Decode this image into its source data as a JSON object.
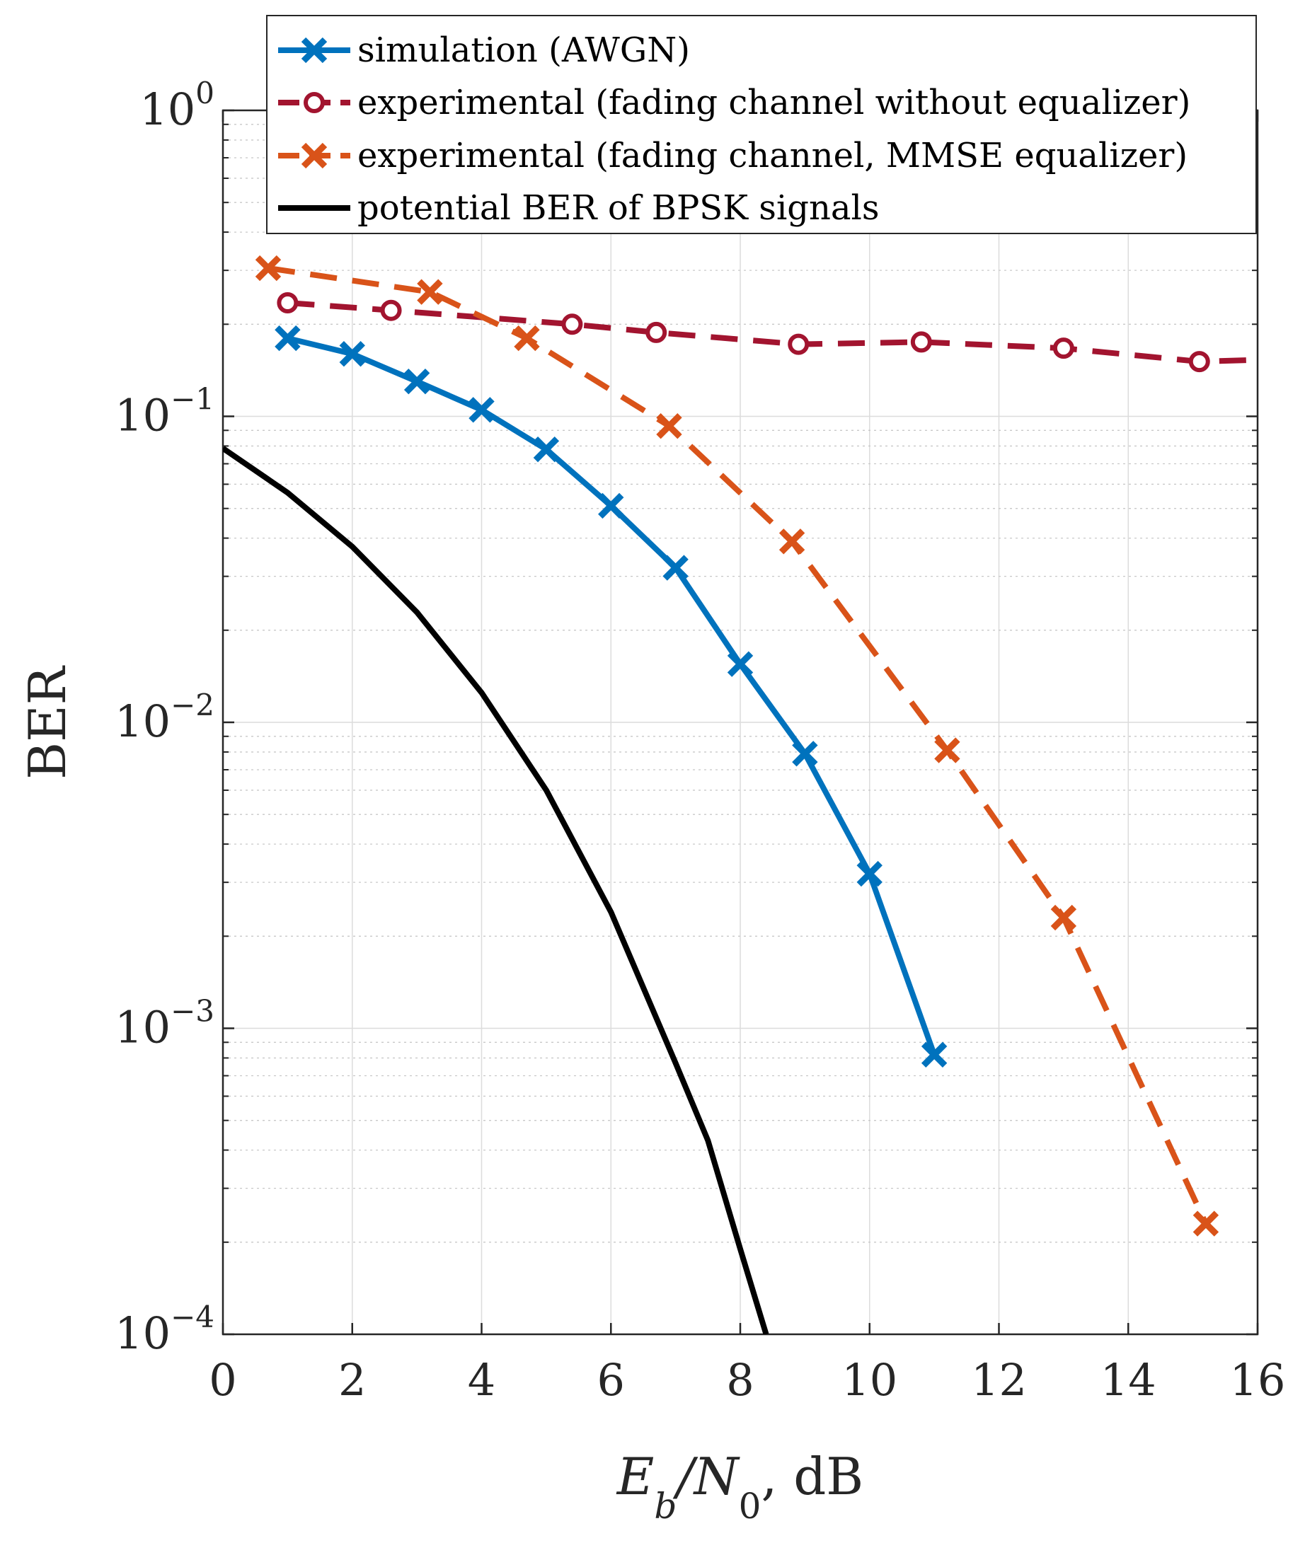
{
  "chart_data": {
    "type": "line",
    "xlabel": {
      "main": "E",
      "sub1": "b",
      "slash": "/N",
      "sub2": "0",
      "unit": ", dB"
    },
    "ylabel": "BER",
    "xlim": [
      0,
      16
    ],
    "ylim_log10": [
      -4,
      0
    ],
    "yscale": "log",
    "grid": true,
    "legend_position": "top-right",
    "x_ticks": [
      {
        "value": 0,
        "label": "0"
      },
      {
        "value": 2,
        "label": "2"
      },
      {
        "value": 4,
        "label": "4"
      },
      {
        "value": 6,
        "label": "6"
      },
      {
        "value": 8,
        "label": "8"
      },
      {
        "value": 10,
        "label": "10"
      },
      {
        "value": 12,
        "label": "12"
      },
      {
        "value": 14,
        "label": "14"
      },
      {
        "value": 16,
        "label": "16"
      }
    ],
    "y_ticks": [
      {
        "exp": 0,
        "base": "10",
        "power": "0"
      },
      {
        "exp": -1,
        "base": "10",
        "power": "−1"
      },
      {
        "exp": -2,
        "base": "10",
        "power": "−2"
      },
      {
        "exp": -3,
        "base": "10",
        "power": "−3"
      },
      {
        "exp": -4,
        "base": "10",
        "power": "−4"
      }
    ],
    "series": [
      {
        "name": "simulation (AWGN)",
        "color": "#0072BD",
        "dash": "solid",
        "marker": "x",
        "x": [
          1,
          2,
          3,
          4,
          5,
          6,
          7,
          8,
          9,
          10,
          11
        ],
        "y": [
          0.18,
          0.16,
          0.13,
          0.105,
          0.078,
          0.051,
          0.032,
          0.0155,
          0.0079,
          0.0032,
          0.00082
        ]
      },
      {
        "name": "experimental (fading channel without equalizer)",
        "color": "#A2142F",
        "dash": "dashed",
        "marker": "o",
        "x": [
          1.0,
          2.6,
          5.4,
          6.7,
          8.9,
          10.8,
          13.0,
          15.1,
          16.0
        ],
        "y": [
          0.235,
          0.222,
          0.2,
          0.188,
          0.172,
          0.175,
          0.167,
          0.151,
          0.153
        ],
        "marker_mask": [
          true,
          true,
          true,
          true,
          true,
          true,
          true,
          true,
          false
        ]
      },
      {
        "name": "experimental (fading channel, MMSE equalizer)",
        "color": "#D95319",
        "dash": "dashed",
        "marker": "x",
        "x": [
          0.7,
          3.2,
          4.7,
          6.9,
          8.8,
          11.2,
          13.0,
          15.2
        ],
        "y": [
          0.305,
          0.255,
          0.18,
          0.093,
          0.039,
          0.0081,
          0.0023,
          0.00023
        ]
      },
      {
        "name": "potential BER of BPSK signals",
        "color": "#000000",
        "dash": "solid",
        "marker": "none",
        "x": [
          0,
          1,
          2,
          3,
          4,
          5,
          6,
          7,
          7.5,
          8,
          8.4
        ],
        "y": [
          0.0786,
          0.0563,
          0.0375,
          0.0229,
          0.0125,
          0.006,
          0.0024,
          0.00077,
          0.00043,
          0.00019,
          0.0001
        ]
      }
    ]
  }
}
